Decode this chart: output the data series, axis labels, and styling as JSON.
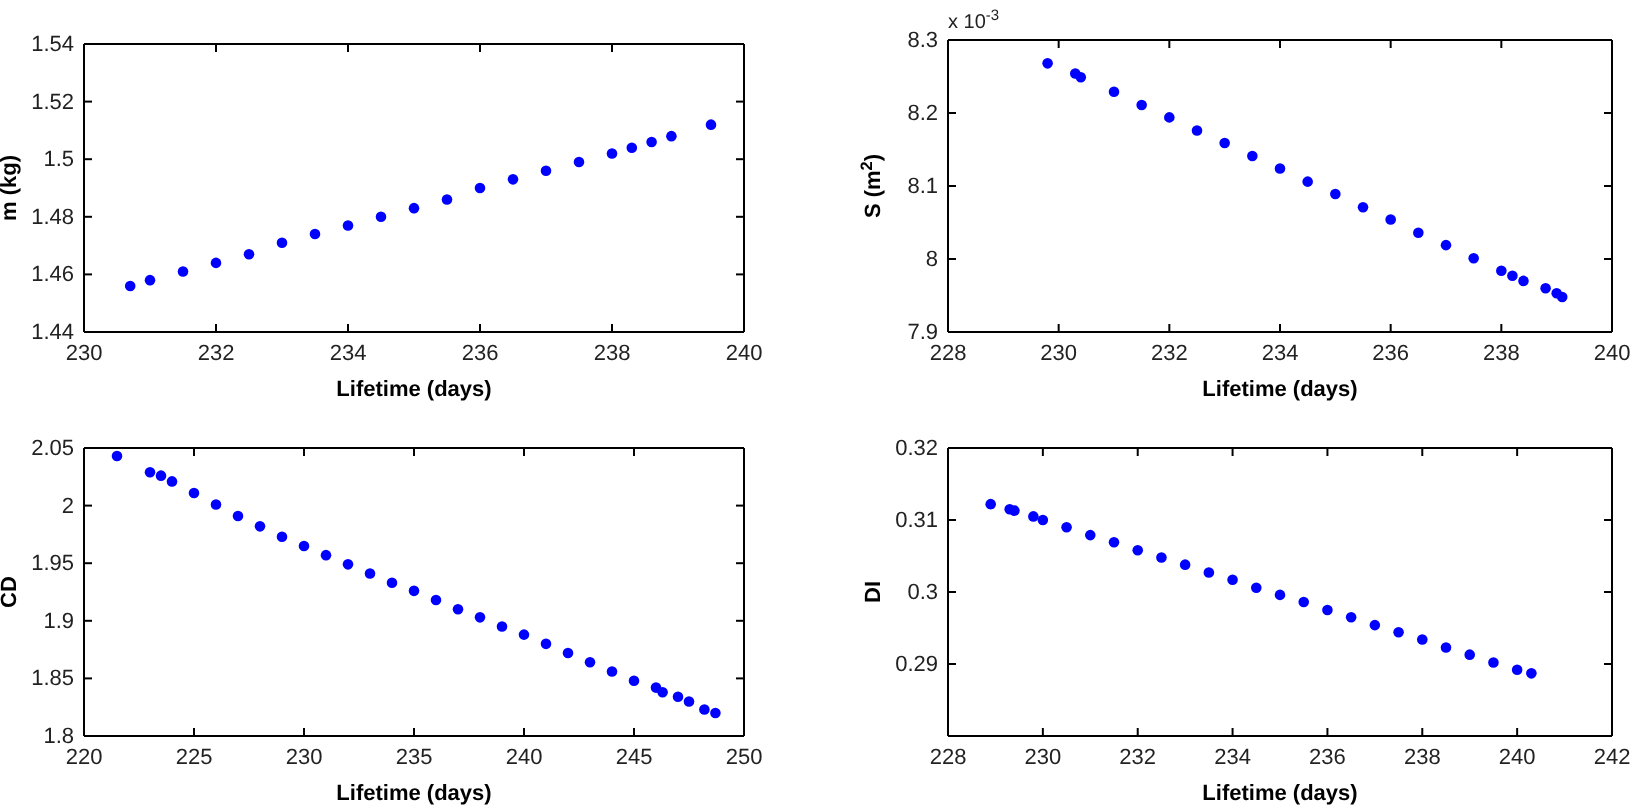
{
  "chart_data": [
    {
      "type": "scatter",
      "xlabel": "Lifetime (days)",
      "ylabel": "m (kg)",
      "xlim": [
        230,
        240
      ],
      "xticks": [
        230,
        232,
        234,
        236,
        238,
        240
      ],
      "ylim": [
        1.44,
        1.54
      ],
      "yticks": [
        1.44,
        1.46,
        1.48,
        1.5,
        1.52,
        1.54
      ],
      "marker": "circle",
      "grid": false,
      "series": [
        {
          "color": "#0000ff",
          "x": [
            230.7,
            231.0,
            231.5,
            232.0,
            232.5,
            233.0,
            233.5,
            234.0,
            234.5,
            235.0,
            235.5,
            236.0,
            236.5,
            237.0,
            237.5,
            238.0,
            238.3,
            238.6,
            238.9,
            239.5
          ],
          "values": [
            1.456,
            1.458,
            1.461,
            1.464,
            1.467,
            1.471,
            1.474,
            1.477,
            1.48,
            1.483,
            1.486,
            1.49,
            1.493,
            1.496,
            1.499,
            1.502,
            1.504,
            1.506,
            1.508,
            1.512
          ]
        }
      ]
    },
    {
      "type": "scatter",
      "xlabel": "Lifetime (days)",
      "ylabel": "S (m$^{2}$)",
      "annotations": [
        "x 10$^{-3}$"
      ],
      "xlim": [
        228,
        240
      ],
      "xticks": [
        228,
        230,
        232,
        234,
        236,
        238,
        240
      ],
      "ylim": [
        7.9,
        8.3
      ],
      "yticks": [
        7.9,
        8,
        8.1,
        8.2,
        8.3
      ],
      "marker": "circle",
      "grid": false,
      "series": [
        {
          "color": "#0000ff",
          "x": [
            229.8,
            230.3,
            230.4,
            231.0,
            231.5,
            232.0,
            232.5,
            233.0,
            233.5,
            234.0,
            234.5,
            235.0,
            235.5,
            236.0,
            236.5,
            237.0,
            237.5,
            238.0,
            238.2,
            238.4,
            238.8,
            239.0,
            239.1
          ],
          "values": [
            8.268,
            8.254,
            8.249,
            8.229,
            8.211,
            8.194,
            8.176,
            8.159,
            8.141,
            8.124,
            8.106,
            8.089,
            8.071,
            8.054,
            8.036,
            8.019,
            8.001,
            7.984,
            7.977,
            7.97,
            7.96,
            7.953,
            7.948
          ]
        }
      ]
    },
    {
      "type": "scatter",
      "xlabel": "Lifetime (days)",
      "ylabel": "CD",
      "xlim": [
        220,
        250
      ],
      "xticks": [
        220,
        225,
        230,
        235,
        240,
        245,
        250
      ],
      "ylim": [
        1.8,
        2.05
      ],
      "yticks": [
        1.8,
        1.85,
        1.9,
        1.95,
        2,
        2.05
      ],
      "marker": "circle",
      "grid": false,
      "series": [
        {
          "color": "#0000ff",
          "x": [
            221.5,
            223,
            223.5,
            224,
            225,
            226,
            227,
            228,
            229,
            230,
            231,
            232,
            233,
            234,
            235,
            236,
            237,
            238,
            239,
            240,
            241,
            242,
            243,
            244,
            245,
            246,
            246.3,
            247,
            247.5,
            248.2,
            248.7
          ],
          "values": [
            2.043,
            2.029,
            2.026,
            2.021,
            2.011,
            2.001,
            1.991,
            1.982,
            1.973,
            1.965,
            1.957,
            1.949,
            1.941,
            1.933,
            1.926,
            1.918,
            1.91,
            1.903,
            1.895,
            1.888,
            1.88,
            1.872,
            1.864,
            1.856,
            1.848,
            1.842,
            1.838,
            1.834,
            1.83,
            1.823,
            1.82
          ]
        }
      ]
    },
    {
      "type": "scatter",
      "xlabel": "Lifetime (days)",
      "ylabel": "DI",
      "xlim": [
        228,
        242
      ],
      "xticks": [
        228,
        230,
        232,
        234,
        236,
        238,
        240,
        242
      ],
      "ylim": [
        0.28,
        0.32
      ],
      "yticks": [
        0.29,
        0.3,
        0.31,
        0.32
      ],
      "marker": "circle",
      "grid": false,
      "series": [
        {
          "color": "#0000ff",
          "x": [
            228.9,
            229.3,
            229.4,
            229.8,
            230.0,
            230.5,
            231,
            231.5,
            232,
            232.5,
            233,
            233.5,
            234,
            234.5,
            235,
            235.5,
            236,
            236.5,
            237,
            237.5,
            238,
            238.5,
            239,
            239.5,
            240,
            240.3
          ],
          "values": [
            0.3122,
            0.3115,
            0.3113,
            0.3105,
            0.31,
            0.309,
            0.3079,
            0.3069,
            0.3058,
            0.3048,
            0.3038,
            0.3027,
            0.3017,
            0.3006,
            0.2996,
            0.2986,
            0.2975,
            0.2965,
            0.2954,
            0.2944,
            0.2934,
            0.2923,
            0.2913,
            0.2902,
            0.2892,
            0.2887
          ]
        }
      ]
    }
  ]
}
